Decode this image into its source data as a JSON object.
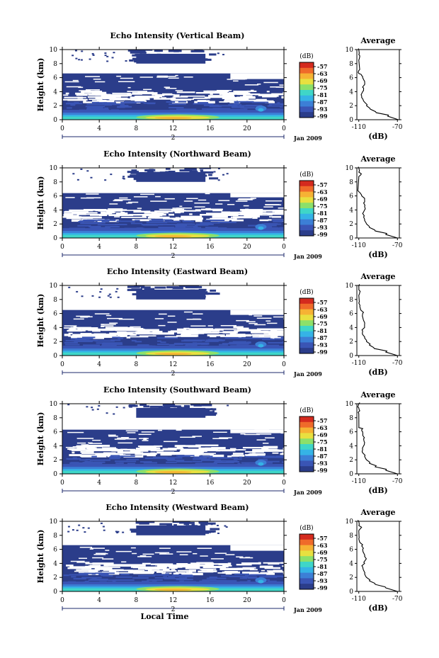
{
  "figure": {
    "xlabel": "Local Time",
    "date_label": "Jan 2009",
    "day_label": "2",
    "ylabel": "Height (km)",
    "avg_title": "Average",
    "avg_xlabel": "(dB)",
    "colorbar_unit": "(dB)"
  },
  "colors": {
    "background_echo": "#2b3d8a",
    "colormap": [
      "#2b3d8a",
      "#3a55b5",
      "#3c7fd6",
      "#35b3e6",
      "#3fd6c8",
      "#8ce06a",
      "#e8e040",
      "#f6b234",
      "#ef6a2a",
      "#d42a1e"
    ]
  },
  "chart_data": [
    {
      "type": "heatmap",
      "title": "Echo Intensity (Vertical Beam)",
      "x_ticks": [
        "0",
        "4",
        "8",
        "12",
        "16",
        "20",
        "0"
      ],
      "y_ticks": [
        "0",
        "2",
        "4",
        "6",
        "8",
        "10"
      ],
      "xlim": [
        0,
        24
      ],
      "ylim": [
        0,
        10
      ],
      "colorbar_ticks": [
        "-57",
        "-63",
        "-69",
        "-75",
        "-81",
        "-87",
        "-93",
        "-99"
      ],
      "avg_x_ticks": [
        "-110",
        "-70"
      ],
      "avg_profile": [
        [
          -69,
          0
        ],
        [
          -80,
          0.5
        ],
        [
          -92,
          1
        ],
        [
          -98,
          1.5
        ],
        [
          -102,
          2
        ],
        [
          -104,
          2.5
        ],
        [
          -106,
          3
        ],
        [
          -107,
          3.4
        ],
        [
          -106,
          4
        ],
        [
          -105,
          4.5
        ],
        [
          -104,
          5
        ],
        [
          -104,
          5.5
        ],
        [
          -106,
          6
        ],
        [
          -107,
          6.3
        ],
        [
          -110,
          6.6
        ],
        [
          -110,
          7
        ],
        [
          -110,
          8.5
        ],
        [
          -109,
          9
        ],
        [
          -110,
          9.3
        ],
        [
          -110,
          10
        ]
      ]
    },
    {
      "type": "heatmap",
      "title": "Echo Intensity (Northward Beam)",
      "x_ticks": [
        "0",
        "4",
        "8",
        "12",
        "16",
        "20",
        "0"
      ],
      "y_ticks": [
        "0",
        "2",
        "4",
        "6",
        "8",
        "10"
      ],
      "xlim": [
        0,
        24
      ],
      "ylim": [
        0,
        10
      ],
      "colorbar_ticks": [
        "-57",
        "-63",
        "-69",
        "-75",
        "-81",
        "-87",
        "-93",
        "-99"
      ],
      "avg_x_ticks": [
        "-110",
        "-70"
      ],
      "avg_profile": [
        [
          -70,
          0
        ],
        [
          -82,
          0.5
        ],
        [
          -93,
          1
        ],
        [
          -99,
          1.5
        ],
        [
          -102,
          2
        ],
        [
          -104,
          2.5
        ],
        [
          -105,
          3
        ],
        [
          -106,
          3.5
        ],
        [
          -104,
          4
        ],
        [
          -104,
          4.5
        ],
        [
          -105,
          5
        ],
        [
          -104,
          5.5
        ],
        [
          -107,
          6
        ],
        [
          -108,
          6.3
        ],
        [
          -110,
          6.6
        ],
        [
          -110,
          8.6
        ],
        [
          -108,
          9
        ],
        [
          -110,
          9.4
        ],
        [
          -110,
          10
        ]
      ]
    },
    {
      "type": "heatmap",
      "title": "Echo Intensity (Eastward Beam)",
      "x_ticks": [
        "0",
        "4",
        "8",
        "12",
        "16",
        "20",
        "0"
      ],
      "y_ticks": [
        "0",
        "2",
        "4",
        "6",
        "8",
        "10"
      ],
      "xlim": [
        0,
        24
      ],
      "ylim": [
        0,
        10
      ],
      "colorbar_ticks": [
        "-57",
        "-63",
        "-69",
        "-75",
        "-81",
        "-87",
        "-93",
        "-99"
      ],
      "avg_x_ticks": [
        "-110",
        "-70"
      ],
      "avg_profile": [
        [
          -70,
          0
        ],
        [
          -82,
          0.5
        ],
        [
          -94,
          1
        ],
        [
          -99,
          1.5
        ],
        [
          -102,
          2
        ],
        [
          -104,
          2.5
        ],
        [
          -106,
          3
        ],
        [
          -106,
          3.5
        ],
        [
          -104,
          4
        ],
        [
          -104,
          4.5
        ],
        [
          -105,
          5
        ],
        [
          -106,
          5.5
        ],
        [
          -106,
          6
        ],
        [
          -108,
          6.5
        ],
        [
          -109,
          7
        ],
        [
          -110,
          7.5
        ],
        [
          -110,
          8.6
        ],
        [
          -109,
          9
        ],
        [
          -110,
          9.4
        ],
        [
          -110,
          10
        ]
      ]
    },
    {
      "type": "heatmap",
      "title": "Echo Intensity (Southward Beam)",
      "x_ticks": [
        "0",
        "4",
        "8",
        "12",
        "16",
        "20",
        "0"
      ],
      "y_ticks": [
        "0",
        "2",
        "4",
        "6",
        "8",
        "10"
      ],
      "xlim": [
        0,
        24
      ],
      "ylim": [
        0,
        10
      ],
      "colorbar_ticks": [
        "-57",
        "-63",
        "-69",
        "-75",
        "-81",
        "-87",
        "-93",
        "-99"
      ],
      "avg_x_ticks": [
        "-110",
        "-70"
      ],
      "avg_profile": [
        [
          -70,
          0
        ],
        [
          -82,
          0.5
        ],
        [
          -93,
          1
        ],
        [
          -99,
          1.5
        ],
        [
          -102,
          2
        ],
        [
          -104,
          2.5
        ],
        [
          -106,
          3
        ],
        [
          -106,
          3.5
        ],
        [
          -105,
          4
        ],
        [
          -104,
          4.5
        ],
        [
          -105,
          5
        ],
        [
          -106,
          5.5
        ],
        [
          -106,
          6
        ],
        [
          -107,
          6.3
        ],
        [
          -110,
          6.6
        ],
        [
          -110,
          8.6
        ],
        [
          -109,
          9
        ],
        [
          -110,
          9.4
        ],
        [
          -110,
          10
        ]
      ]
    },
    {
      "type": "heatmap",
      "title": "Echo Intensity (Westward Beam)",
      "x_ticks": [
        "0",
        "4",
        "8",
        "12",
        "16",
        "20",
        "0"
      ],
      "y_ticks": [
        "0",
        "2",
        "4",
        "6",
        "8",
        "10"
      ],
      "xlim": [
        0,
        24
      ],
      "ylim": [
        0,
        10
      ],
      "colorbar_ticks": [
        "-57",
        "-63",
        "-69",
        "-75",
        "-81",
        "-87",
        "-93",
        "-99"
      ],
      "avg_x_ticks": [
        "-110",
        "-70"
      ],
      "avg_profile": [
        [
          -70,
          0
        ],
        [
          -82,
          0.5
        ],
        [
          -93,
          1
        ],
        [
          -99,
          1.5
        ],
        [
          -102,
          2
        ],
        [
          -104,
          2.5
        ],
        [
          -105,
          3
        ],
        [
          -106,
          3.5
        ],
        [
          -104,
          4
        ],
        [
          -103,
          4.5
        ],
        [
          -104,
          5
        ],
        [
          -105,
          5.5
        ],
        [
          -106,
          6
        ],
        [
          -107,
          6.5
        ],
        [
          -109,
          7
        ],
        [
          -110,
          7.5
        ],
        [
          -110,
          8.6
        ],
        [
          -108,
          9
        ],
        [
          -110,
          9.4
        ],
        [
          -110,
          10
        ]
      ]
    }
  ]
}
